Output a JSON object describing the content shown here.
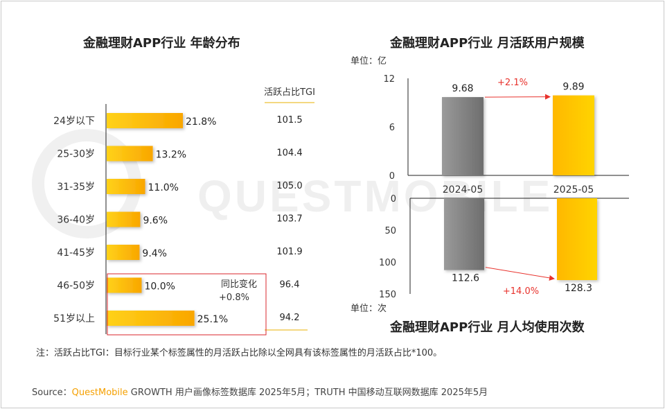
{
  "watermark": "QUESTMOBILE",
  "left": {
    "title": "金融理财APP行业 年龄分布"
  },
  "right_top": {
    "title": "金融理财APP行业 月活跃用户规模"
  },
  "right_bottom": {
    "title": "金融理财APP行业 月人均使用次数"
  },
  "footnote": "注：活跃占比TGI：目标行业某个标签属性的月活跃占比除以全网具有该标签属性的月活跃占比*100。",
  "source": {
    "label": "Source：",
    "brand": "QuestMobile",
    "text": " GROWTH 用户画像标签数据库 2025年5月；TRUTH 中国移动互联网数据库 2025年5月"
  },
  "chart_data": [
    {
      "type": "bar",
      "orientation": "horizontal",
      "title": "金融理财APP行业 年龄分布",
      "categories": [
        "24岁以下",
        "25-30岁",
        "31-35岁",
        "36-40岁",
        "41-45岁",
        "46-50岁",
        "51岁以上"
      ],
      "values": [
        21.8,
        13.2,
        11.0,
        9.6,
        9.4,
        10.0,
        25.1
      ],
      "value_labels": [
        "21.8%",
        "13.2%",
        "11.0%",
        "9.6%",
        "9.4%",
        "10.0%",
        "25.1%"
      ],
      "tgi_header": "活跃占比TGI",
      "tgi": [
        "101.5",
        "104.4",
        "105.0",
        "103.7",
        "101.9",
        "96.4",
        "94.2"
      ],
      "callout": {
        "text": [
          "同比变化",
          "+0.8%"
        ]
      },
      "colors": {
        "bar": "#FFC000",
        "callout_border": "#d9262b"
      }
    },
    {
      "type": "bar",
      "title": "金融理财APP行业 月活跃用户规模",
      "unit_label": "单位：亿",
      "categories": [
        "2024-05",
        "2025-05"
      ],
      "values": [
        9.68,
        9.89
      ],
      "value_labels": [
        "9.68",
        "9.89"
      ],
      "yticks": [
        "12",
        "6",
        "0"
      ],
      "ylim": [
        0,
        12
      ],
      "change": "+2.1%",
      "colors": {
        "gray": "#7f7f7f",
        "orange": "#FFC000",
        "arrow": "#e8322c"
      }
    },
    {
      "type": "bar",
      "orientation": "inverted",
      "title": "金融理财APP行业 月人均使用次数",
      "unit_label": "单位：次",
      "categories": [
        "2024-05",
        "2025-05"
      ],
      "values": [
        112.6,
        128.3
      ],
      "value_labels": [
        "112.6",
        "128.3"
      ],
      "yticks": [
        "0",
        "50",
        "100",
        "150"
      ],
      "ylim": [
        0,
        150
      ],
      "change": "+14.0%",
      "colors": {
        "gray": "#7f7f7f",
        "orange": "#FFC000",
        "arrow": "#e8322c"
      }
    }
  ]
}
